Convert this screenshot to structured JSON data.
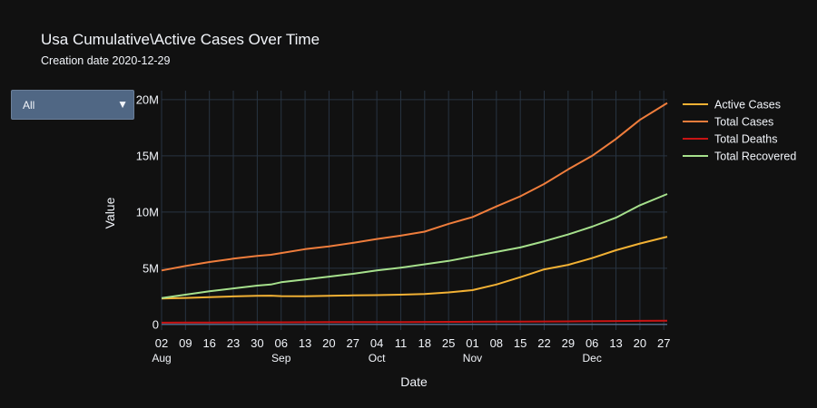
{
  "page": {
    "title": "Usa Cumulative\\Active Cases Over Time",
    "subtitle": "Creation date 2020-12-29"
  },
  "dropdown": {
    "selected": "All",
    "arrow_icon": "triangle-down-icon"
  },
  "colors": {
    "background": "#111111",
    "grid": "#283442",
    "text": "#f2f5fa",
    "active": "#f2b134",
    "total": "#ef7d3c",
    "deaths": "#c81414",
    "recovered": "#a6e08c"
  },
  "chart_data": {
    "type": "line",
    "xlabel": "Date",
    "ylabel": "Value",
    "x_range": [
      "2020-08-02",
      "2020-12-28"
    ],
    "ylim": [
      -500000,
      20800000
    ],
    "grid": true,
    "legend_placement": "top-right",
    "x_ticks": [
      {
        "date": "2020-08-02",
        "label": "02",
        "month": "Aug"
      },
      {
        "date": "2020-08-09",
        "label": "09",
        "month": ""
      },
      {
        "date": "2020-08-16",
        "label": "16",
        "month": ""
      },
      {
        "date": "2020-08-23",
        "label": "23",
        "month": ""
      },
      {
        "date": "2020-08-30",
        "label": "30",
        "month": ""
      },
      {
        "date": "2020-09-06",
        "label": "06",
        "month": "Sep"
      },
      {
        "date": "2020-09-13",
        "label": "13",
        "month": ""
      },
      {
        "date": "2020-09-20",
        "label": "20",
        "month": ""
      },
      {
        "date": "2020-09-27",
        "label": "27",
        "month": ""
      },
      {
        "date": "2020-10-04",
        "label": "04",
        "month": "Oct"
      },
      {
        "date": "2020-10-11",
        "label": "11",
        "month": ""
      },
      {
        "date": "2020-10-18",
        "label": "18",
        "month": ""
      },
      {
        "date": "2020-10-25",
        "label": "25",
        "month": ""
      },
      {
        "date": "2020-11-01",
        "label": "01",
        "month": "Nov"
      },
      {
        "date": "2020-11-08",
        "label": "08",
        "month": ""
      },
      {
        "date": "2020-11-15",
        "label": "15",
        "month": ""
      },
      {
        "date": "2020-11-22",
        "label": "22",
        "month": ""
      },
      {
        "date": "2020-11-29",
        "label": "29",
        "month": ""
      },
      {
        "date": "2020-12-06",
        "label": "06",
        "month": "Dec"
      },
      {
        "date": "2020-12-13",
        "label": "13",
        "month": ""
      },
      {
        "date": "2020-12-20",
        "label": "20",
        "month": ""
      },
      {
        "date": "2020-12-27",
        "label": "27",
        "month": ""
      }
    ],
    "y_ticks": [
      {
        "value": 0,
        "label": "0"
      },
      {
        "value": 5000000,
        "label": "5M"
      },
      {
        "value": 10000000,
        "label": "10M"
      },
      {
        "value": 15000000,
        "label": "15M"
      },
      {
        "value": 20000000,
        "label": "20M"
      }
    ],
    "x": [
      "2020-08-02",
      "2020-08-09",
      "2020-08-16",
      "2020-08-23",
      "2020-08-30",
      "2020-09-03",
      "2020-09-06",
      "2020-09-13",
      "2020-09-20",
      "2020-09-27",
      "2020-10-04",
      "2020-10-11",
      "2020-10-18",
      "2020-10-25",
      "2020-11-01",
      "2020-11-08",
      "2020-11-15",
      "2020-11-22",
      "2020-11-29",
      "2020-12-06",
      "2020-12-13",
      "2020-12-20",
      "2020-12-28"
    ],
    "series": [
      {
        "name": "Active Cases",
        "color_key": "active",
        "values": [
          2300000,
          2360000,
          2420000,
          2490000,
          2550000,
          2560000,
          2520000,
          2510000,
          2540000,
          2580000,
          2610000,
          2650000,
          2700000,
          2850000,
          3050000,
          3550000,
          4200000,
          4900000,
          5300000,
          5900000,
          6600000,
          7200000,
          7800000
        ]
      },
      {
        "name": "Total Cases",
        "color_key": "total",
        "values": [
          4800000,
          5200000,
          5550000,
          5850000,
          6100000,
          6200000,
          6350000,
          6700000,
          6950000,
          7250000,
          7600000,
          7900000,
          8250000,
          8950000,
          9550000,
          10500000,
          11400000,
          12500000,
          13800000,
          15000000,
          16500000,
          18200000,
          19700000
        ]
      },
      {
        "name": "Total Deaths",
        "color_key": "deaths",
        "values": [
          157000,
          163000,
          170000,
          177000,
          183000,
          186000,
          189000,
          195000,
          200000,
          205000,
          209000,
          214000,
          220000,
          226000,
          232000,
          240000,
          246000,
          256000,
          266000,
          282000,
          299000,
          316000,
          335000
        ]
      },
      {
        "name": "Total Recovered",
        "color_key": "recovered",
        "values": [
          2350000,
          2650000,
          2950000,
          3200000,
          3450000,
          3550000,
          3750000,
          4000000,
          4250000,
          4500000,
          4800000,
          5050000,
          5350000,
          5650000,
          6050000,
          6450000,
          6850000,
          7400000,
          8000000,
          8700000,
          9500000,
          10600000,
          11600000
        ]
      }
    ]
  }
}
